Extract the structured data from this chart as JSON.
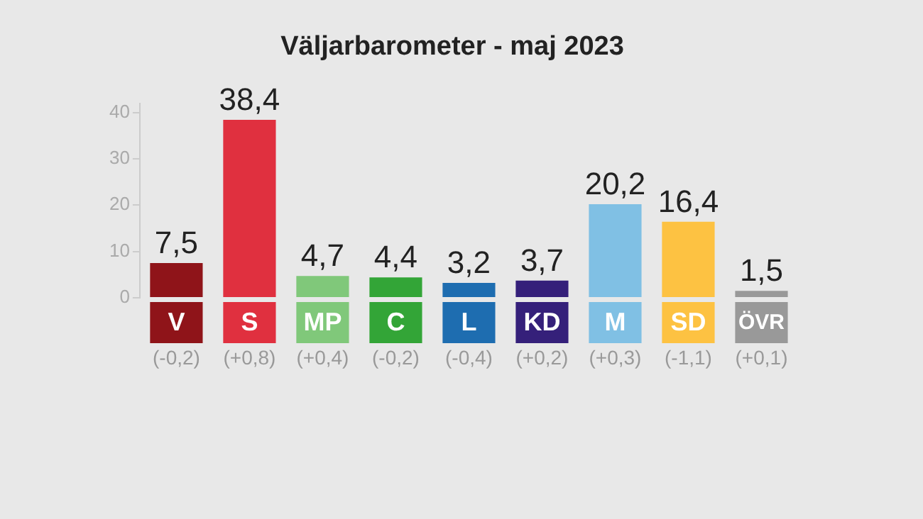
{
  "chart_data": {
    "type": "bar",
    "title": "Väljarbarometer - maj 2023",
    "categories": [
      "V",
      "S",
      "MP",
      "C",
      "L",
      "KD",
      "M",
      "SD",
      "ÖVR"
    ],
    "values": [
      7.5,
      38.4,
      4.7,
      4.4,
      3.2,
      3.7,
      20.2,
      16.4,
      1.5
    ],
    "colors": [
      "#8f1419",
      "#e0303f",
      "#80c87a",
      "#33a537",
      "#1e6db0",
      "#35207a",
      "#80c0e4",
      "#fdc242",
      "#999999"
    ],
    "value_labels": [
      "7,5",
      "38,4",
      "4,7",
      "4,4",
      "3,2",
      "3,7",
      "20,2",
      "16,4",
      "1,5"
    ],
    "annotations": [
      "(-0,2)",
      "(+0,8)",
      "(+0,4)",
      "(-0,2)",
      "(-0,4)",
      "(+0,2)",
      "(+0,3)",
      "(-1,1)",
      "(+0,1)"
    ],
    "ylim": [
      0,
      42
    ],
    "yticks": [
      0,
      10,
      20,
      30,
      40
    ]
  }
}
